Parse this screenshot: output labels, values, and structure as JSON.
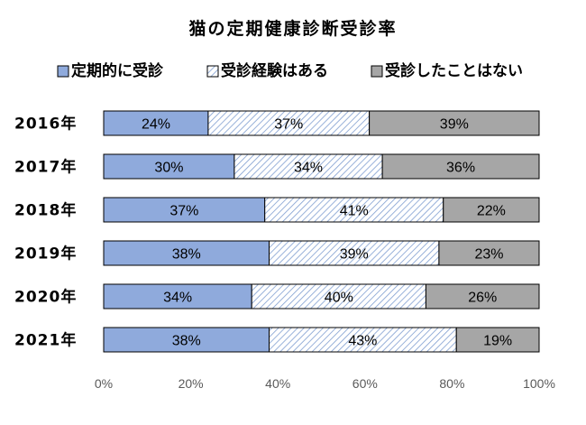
{
  "chart_data": {
    "type": "bar",
    "orientation": "horizontal",
    "stacked": true,
    "title": "猫の定期健康診断受診率",
    "categories": [
      "2016年",
      "2017年",
      "2018年",
      "2019年",
      "2020年",
      "2021年"
    ],
    "series": [
      {
        "name": "定期的に受診",
        "values": [
          24,
          30,
          37,
          38,
          34,
          38
        ],
        "color": "#8faadc",
        "pattern": "solid"
      },
      {
        "name": "受診経験はある",
        "values": [
          37,
          34,
          41,
          39,
          40,
          43
        ],
        "color": "#dae3f3",
        "pattern": "diagonal-hatch"
      },
      {
        "name": "受診したことはない",
        "values": [
          39,
          36,
          22,
          23,
          26,
          19
        ],
        "color": "#a6a6a6",
        "pattern": "solid"
      }
    ],
    "data_label_suffix": "%",
    "xlim": [
      0,
      100
    ],
    "xticks": [
      "0%",
      "20%",
      "40%",
      "60%",
      "80%",
      "100%"
    ],
    "legend_position": "top",
    "grid": false
  }
}
